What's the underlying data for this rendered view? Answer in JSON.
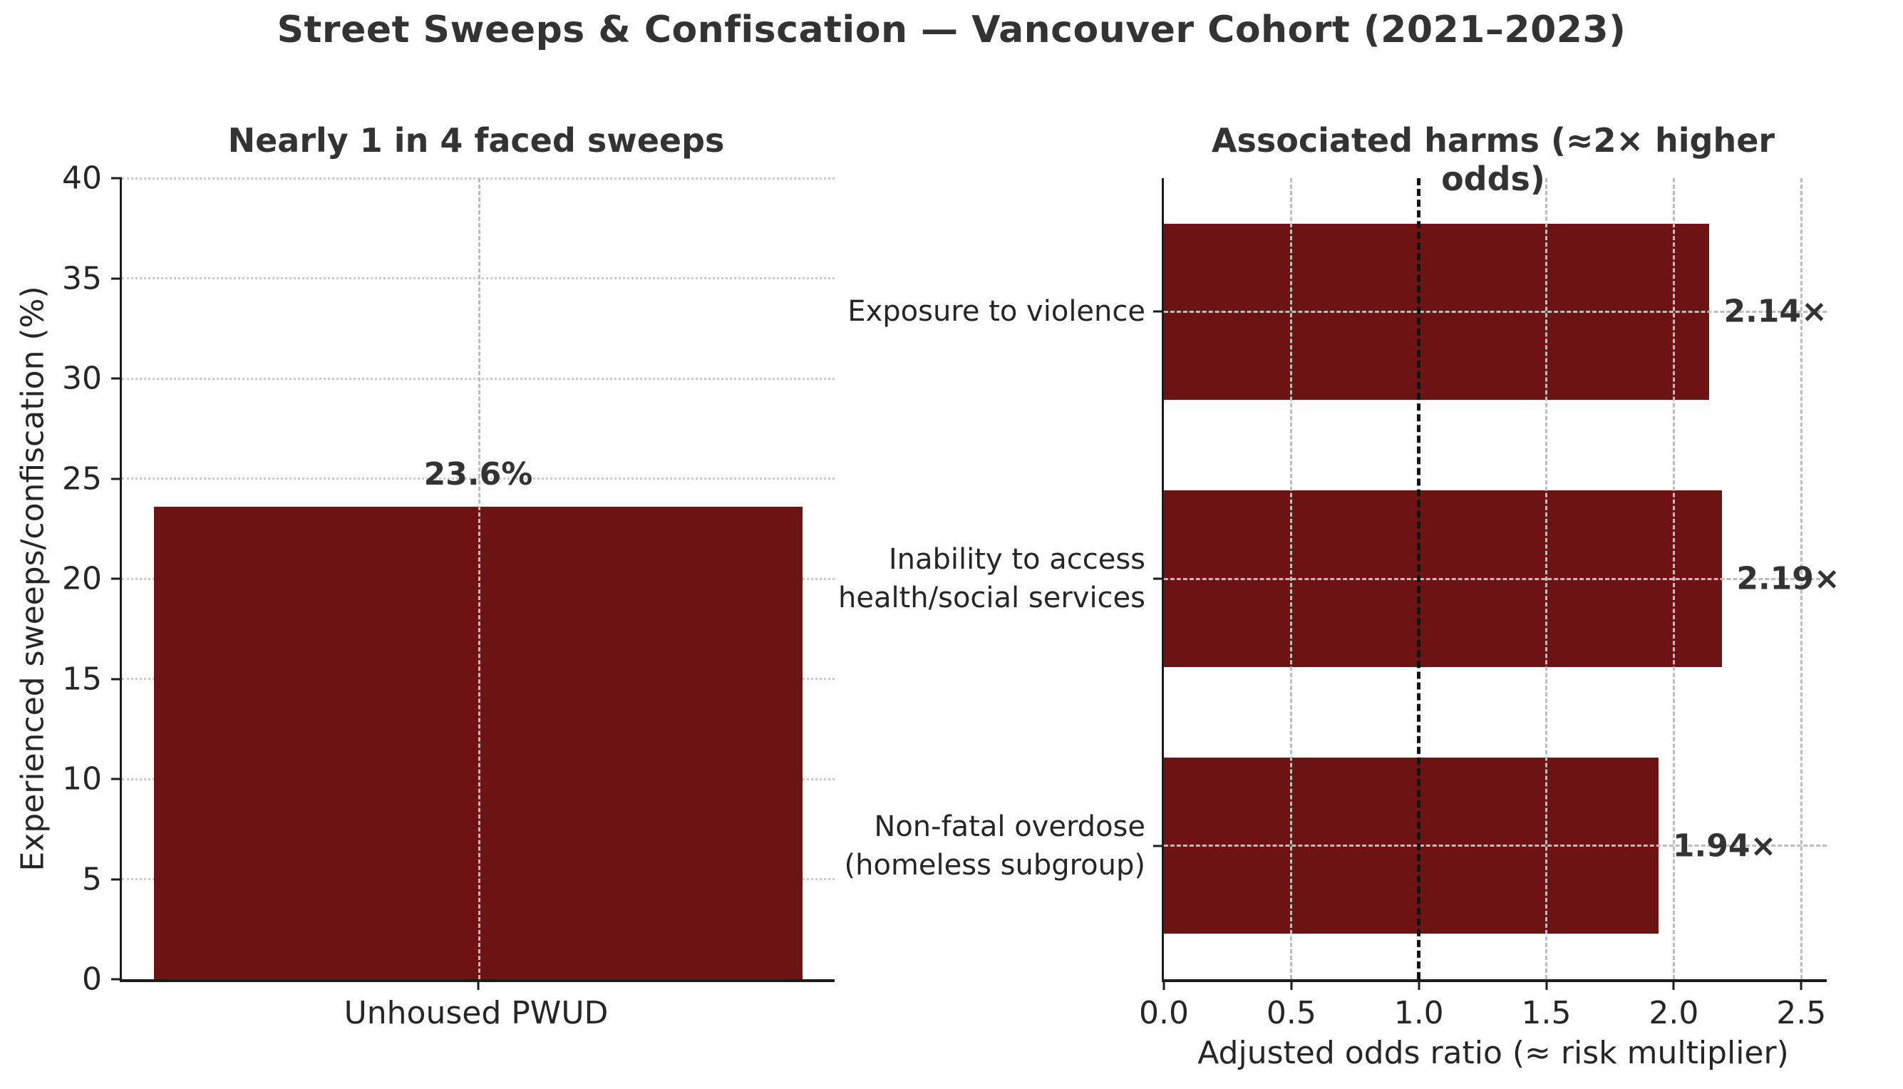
{
  "figure": {
    "title": "Street Sweeps & Confiscation — Vancouver Cohort (2021–2023)",
    "background_color": "#ffffff",
    "bar_color": "#6e1313",
    "text_color": "#2e2e2e",
    "grid_color": "#c9c9c9",
    "reference_line_color": "#141414"
  },
  "chart_data": [
    {
      "type": "bar",
      "title": "Nearly 1 in 4 faced sweeps",
      "categories": [
        "Unhoused PWUD"
      ],
      "values": [
        23.6
      ],
      "bar_labels": [
        "23.6%"
      ],
      "ylabel": "Experienced sweeps/confiscation (%)",
      "xlabel": "",
      "ylim": [
        0,
        40
      ],
      "yticks": [
        0,
        5,
        10,
        15,
        20,
        25,
        30,
        35,
        40
      ],
      "grid": "horizontal dotted lines at y ticks, vertical dashed line at category center",
      "legend": "none",
      "bar_color": "#6e1313"
    },
    {
      "type": "bar",
      "orientation": "horizontal",
      "title": "Associated harms (≈2× higher odds)",
      "categories": [
        "Exposure to violence",
        "Inability to access\nhealth/social services",
        "Non-fatal overdose\n(homeless subgroup)"
      ],
      "values": [
        2.14,
        2.19,
        1.94
      ],
      "value_labels": [
        "2.14×",
        "2.19×",
        "1.94×"
      ],
      "xlabel": "Adjusted odds ratio (≈ risk multiplier)",
      "ylabel": "",
      "xlim": [
        0,
        2.6
      ],
      "xticks": [
        0.0,
        0.5,
        1.0,
        1.5,
        2.0,
        2.5
      ],
      "xtick_labels": [
        "0.0",
        "0.5",
        "1.0",
        "1.5",
        "2.0",
        "2.5"
      ],
      "reference_line": 1.0,
      "grid": "dashed gray gridlines at x ticks and category centers, black dashed reference line at 1.0",
      "legend": "none",
      "bar_color": "#6e1313"
    }
  ]
}
